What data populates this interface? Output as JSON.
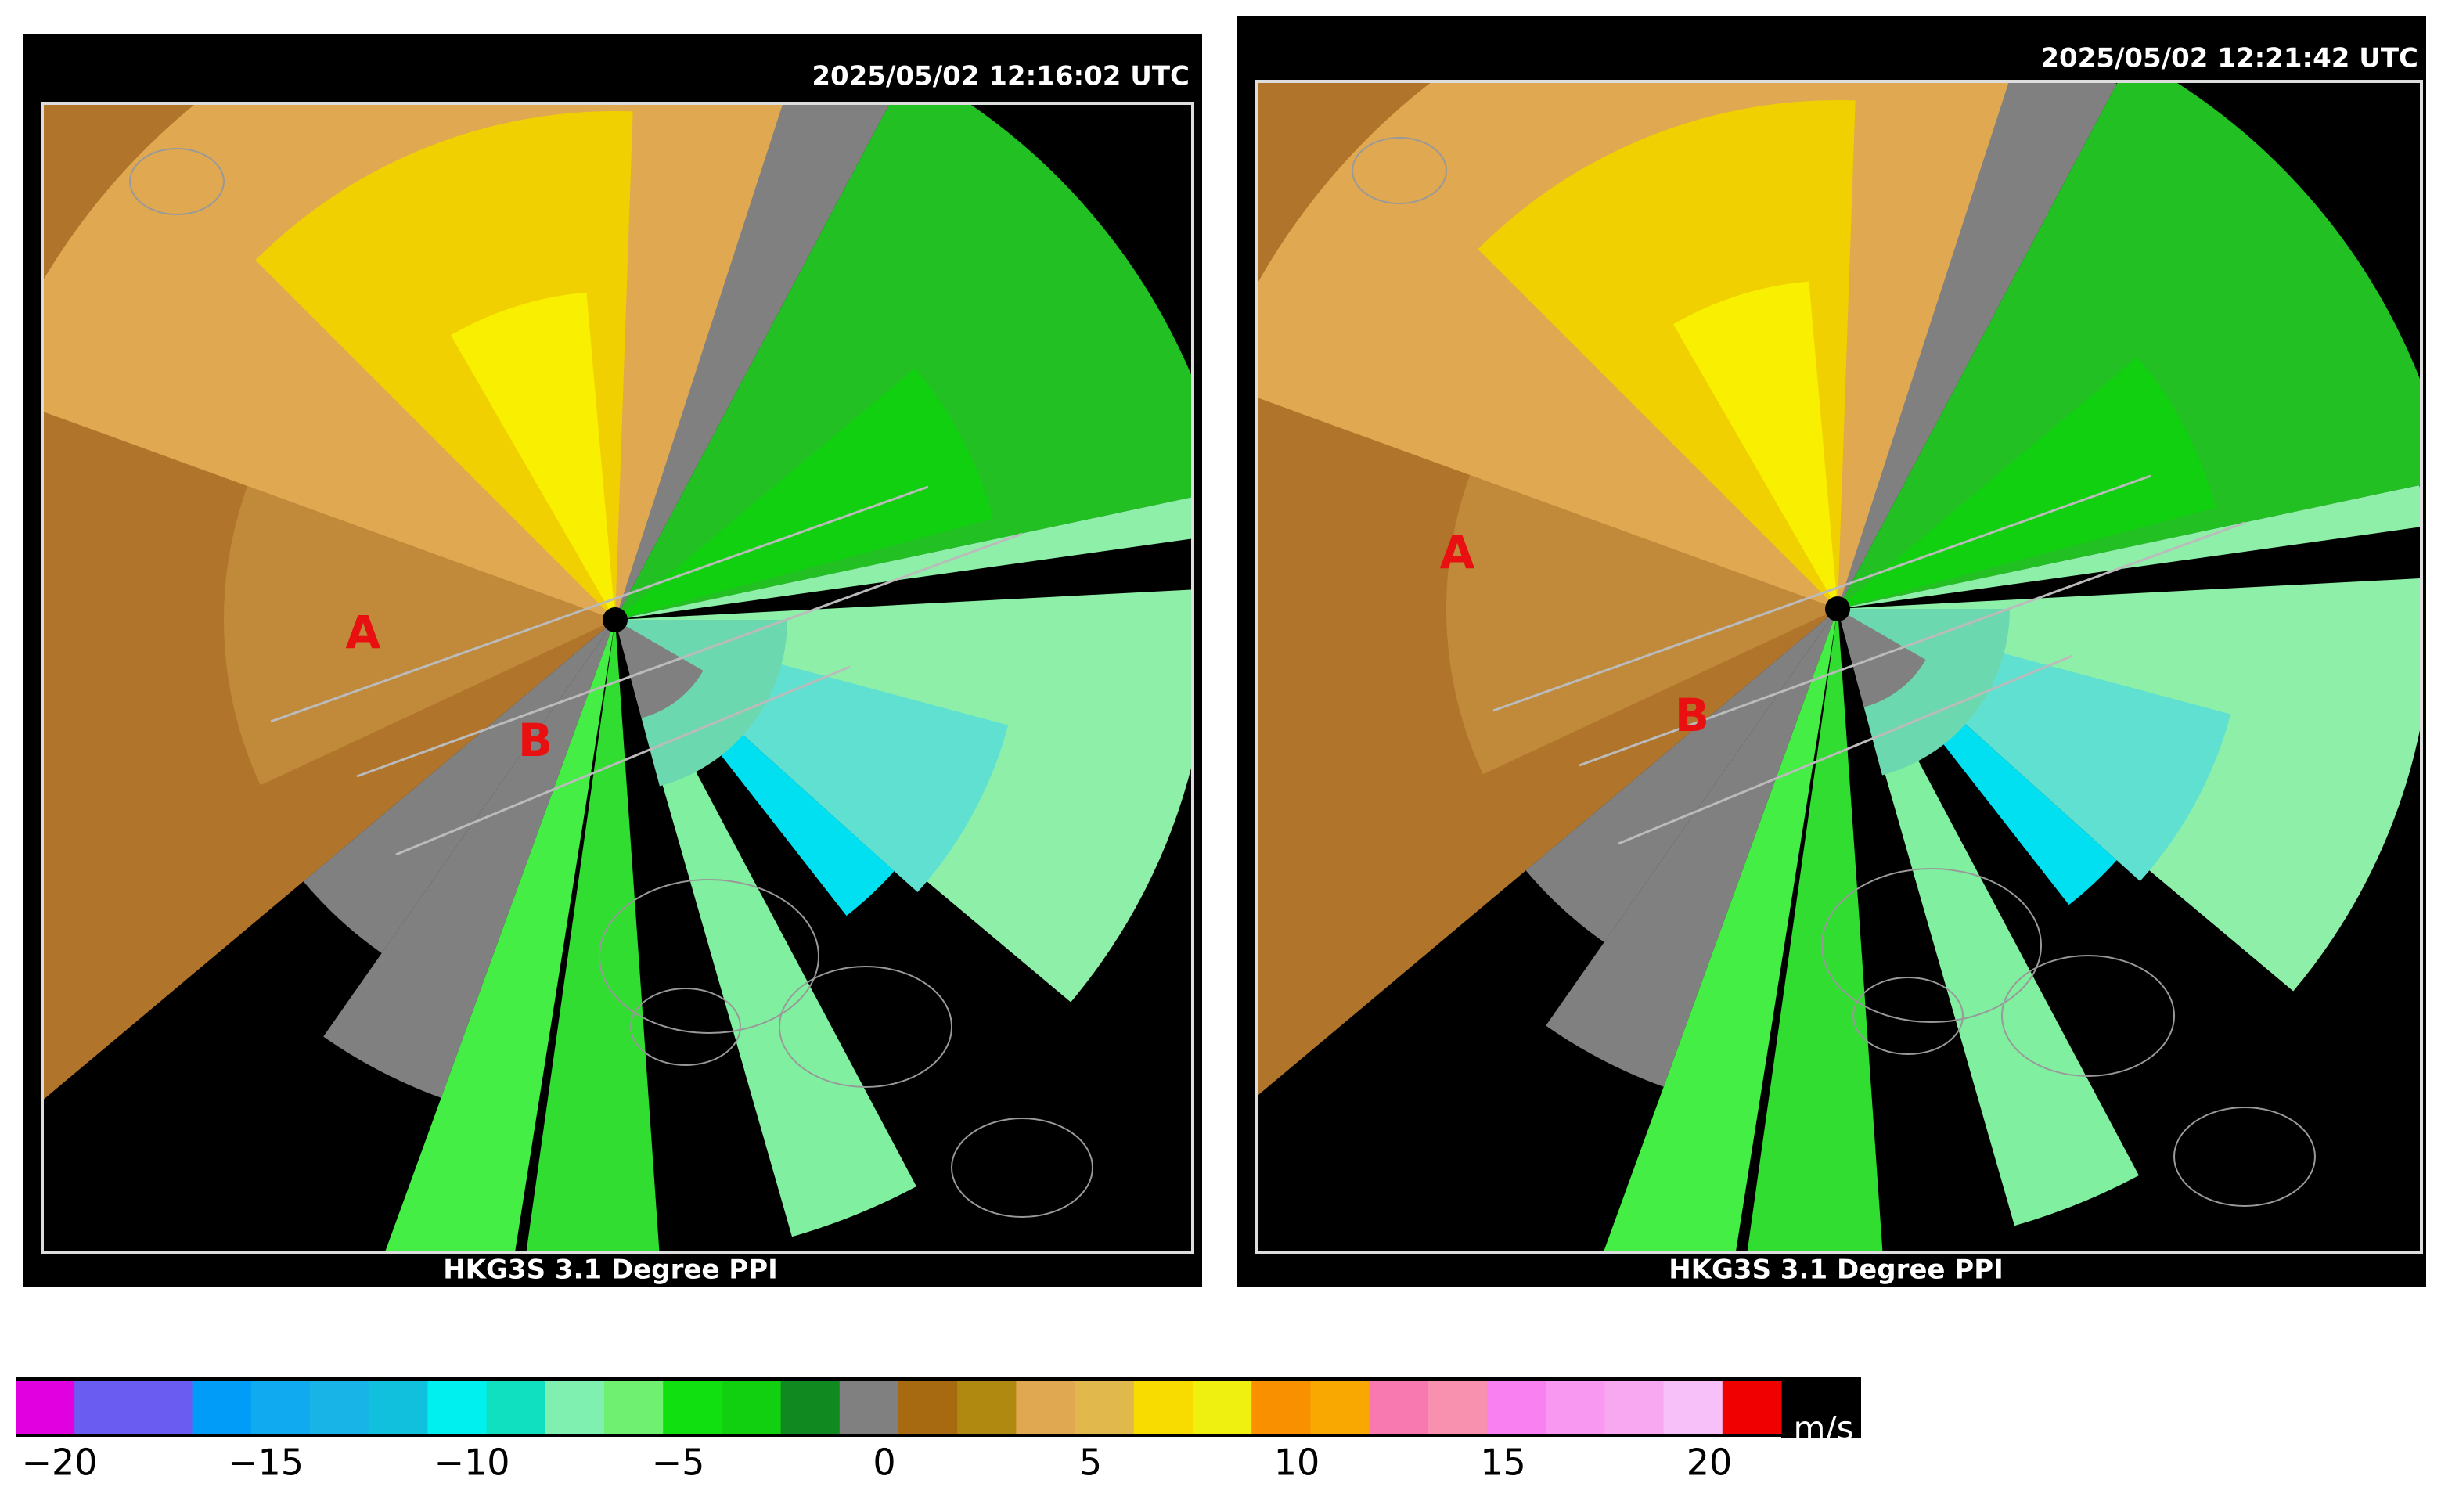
{
  "panels": [
    {
      "timestamp": "2025/05/02  12:16:02 UTC",
      "caption": "HKG3S 3.1 Degree PPI",
      "labels": [
        "A",
        "B"
      ]
    },
    {
      "timestamp": "2025/05/02  12:21:42 UTC",
      "caption": "HKG3S 3.1 Degree PPI",
      "labels": [
        "A",
        "B"
      ]
    }
  ],
  "colorbar": {
    "colors": [
      "#e000e0",
      "#6a5cf0",
      "#6a5cf0",
      "#009cf8",
      "#10aaf0",
      "#18b4e8",
      "#10c0dc",
      "#00f0f0",
      "#10e0c0",
      "#80f0b0",
      "#70f070",
      "#10e010",
      "#10d010",
      "#108a20",
      "#808080",
      "#a86a10",
      "#b08a10",
      "#e0a850",
      "#e0b84c",
      "#f8dc00",
      "#f0f010",
      "#f89000",
      "#f8a800",
      "#f878b0",
      "#f890b0",
      "#f880f0",
      "#f898f0",
      "#f8a8f0",
      "#f8c0f8",
      "#f00000"
    ],
    "ticks": [
      {
        "value": -20,
        "label": "−20"
      },
      {
        "value": -15,
        "label": "−15"
      },
      {
        "value": -10,
        "label": "−10"
      },
      {
        "value": -5,
        "label": "−5"
      },
      0,
      5,
      10,
      15,
      20
    ],
    "unit": "m/s"
  }
}
